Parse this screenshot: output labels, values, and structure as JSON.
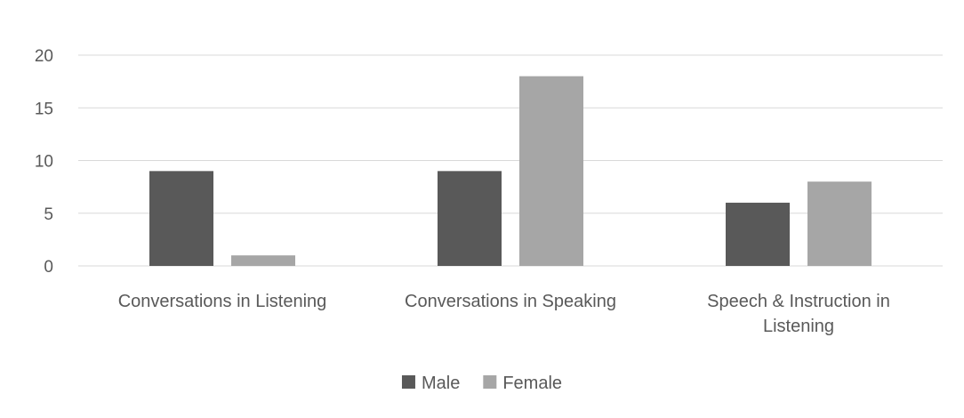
{
  "chart_data": {
    "type": "bar",
    "title": "",
    "xlabel": "",
    "ylabel": "",
    "categories": [
      [
        "Conversations in Listening"
      ],
      [
        "Conversations in Speaking"
      ],
      [
        "Speech & Instruction in",
        "Listening"
      ]
    ],
    "series": [
      {
        "name": "Male",
        "values": [
          9,
          9,
          6
        ],
        "color": "#595959"
      },
      {
        "name": "Female",
        "values": [
          1,
          18,
          8
        ],
        "color": "#a6a6a6"
      }
    ],
    "ylim": [
      0,
      20
    ],
    "yticks": [
      0,
      5,
      10,
      15,
      20
    ],
    "grid": true,
    "legend": "bottom-center"
  }
}
